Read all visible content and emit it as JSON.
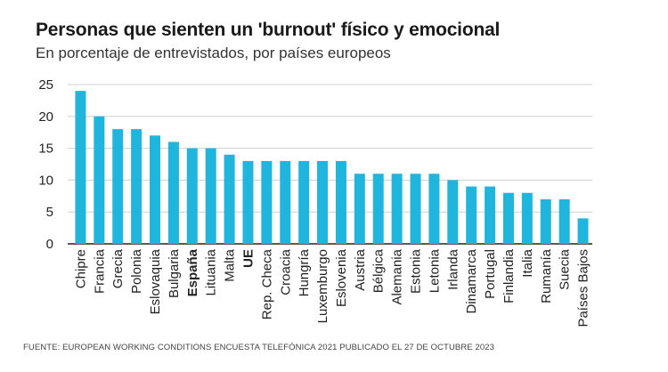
{
  "chart_data": {
    "type": "bar",
    "title": "Personas que sienten un 'burnout' físico y emocional",
    "subtitle": "En porcentaje de entrevistados, por países europeos",
    "source": "FUENTE: EUROPEAN WORKING CONDITIONS ENCUESTA TELEFÓNICA 2021 PUBLICADO EL 27 DE OCTUBRE 2023",
    "categories": [
      "Chipre",
      "Francia",
      "Grecia",
      "Polonia",
      "Eslovaquia",
      "Bulgaria",
      "España",
      "Lituania",
      "Malta",
      "UE",
      "Rep. Checa",
      "Croacia",
      "Hungría",
      "Luxemburgo",
      "Eslovenia",
      "Austria",
      "Bélgica",
      "Alemania",
      "Estonia",
      "Letonia",
      "Irlanda",
      "Dinamarca",
      "Portugal",
      "Finlandia",
      "Italia",
      "Rumanía",
      "Suecia",
      "Países Bajos"
    ],
    "values": [
      24,
      20,
      18,
      18,
      17,
      16,
      15,
      15,
      14,
      13,
      13,
      13,
      13,
      13,
      13,
      11,
      11,
      11,
      11,
      11,
      10,
      9,
      9,
      8,
      8,
      7,
      7,
      4
    ],
    "bold_categories": [
      "España",
      "UE"
    ],
    "ylim": [
      0,
      25
    ],
    "yticks": [
      0,
      5,
      10,
      15,
      20,
      25
    ],
    "grid": true,
    "bar_color": "#1fb5dc"
  }
}
